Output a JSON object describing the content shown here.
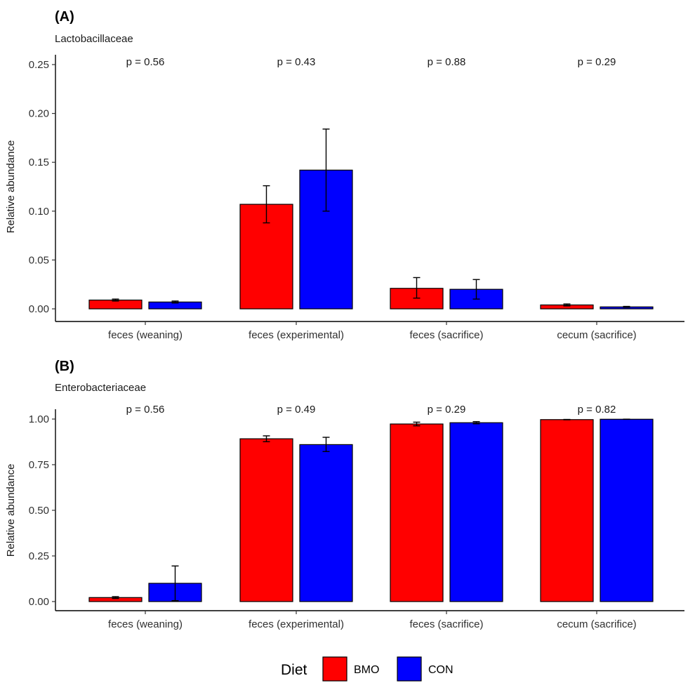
{
  "chart_data": [
    {
      "type": "bar",
      "panel_tag": "(A)",
      "subtitle": "Lactobacillaceae",
      "ylabel": "Relative abundance",
      "xlabel": "",
      "ylim": [
        0,
        0.25
      ],
      "yticks": [
        "0.00",
        "0.05",
        "0.10",
        "0.15",
        "0.20",
        "0.25"
      ],
      "categories": [
        "feces (weaning)",
        "feces (experimental)",
        "feces (sacrifice)",
        "cecum (sacrifice)"
      ],
      "series": [
        {
          "name": "BMO",
          "color": "#ff0000",
          "values": [
            0.009,
            0.107,
            0.021,
            0.004
          ],
          "err_low": [
            0.008,
            0.088,
            0.011,
            0.003
          ],
          "err_high": [
            0.01,
            0.126,
            0.032,
            0.005
          ]
        },
        {
          "name": "CON",
          "color": "#0000ff",
          "values": [
            0.007,
            0.142,
            0.02,
            0.002
          ],
          "err_low": [
            0.006,
            0.1,
            0.01,
            0.0015
          ],
          "err_high": [
            0.008,
            0.184,
            0.03,
            0.0025
          ]
        }
      ],
      "annotations": [
        "p = 0.56",
        "p = 0.43",
        "p = 0.88",
        "p = 0.29"
      ],
      "grid": false
    },
    {
      "type": "bar",
      "panel_tag": "(B)",
      "subtitle": "Enterobacteriaceae",
      "ylabel": "Relative abundance",
      "xlabel": "",
      "ylim": [
        0,
        1.0
      ],
      "yticks": [
        "0.00",
        "0.25",
        "0.50",
        "0.75",
        "1.00"
      ],
      "categories": [
        "feces (weaning)",
        "feces (experimental)",
        "feces (sacrifice)",
        "cecum (sacrifice)"
      ],
      "series": [
        {
          "name": "BMO",
          "color": "#ff0000",
          "values": [
            0.022,
            0.892,
            0.973,
            0.997
          ],
          "err_low": [
            0.017,
            0.876,
            0.963,
            0.996
          ],
          "err_high": [
            0.027,
            0.908,
            0.983,
            0.998
          ]
        },
        {
          "name": "CON",
          "color": "#0000ff",
          "values": [
            0.1,
            0.86,
            0.98,
            0.999
          ],
          "err_low": [
            0.005,
            0.822,
            0.974,
            0.9985
          ],
          "err_high": [
            0.195,
            0.9,
            0.986,
            0.9995
          ]
        }
      ],
      "annotations": [
        "p = 0.56",
        "p = 0.49",
        "p = 0.29",
        "p = 0.82"
      ],
      "grid": false
    }
  ],
  "legend": {
    "title": "Diet",
    "position": "bottom",
    "items": [
      {
        "label": "BMO",
        "color": "#ff0000"
      },
      {
        "label": "CON",
        "color": "#0000ff"
      }
    ]
  }
}
